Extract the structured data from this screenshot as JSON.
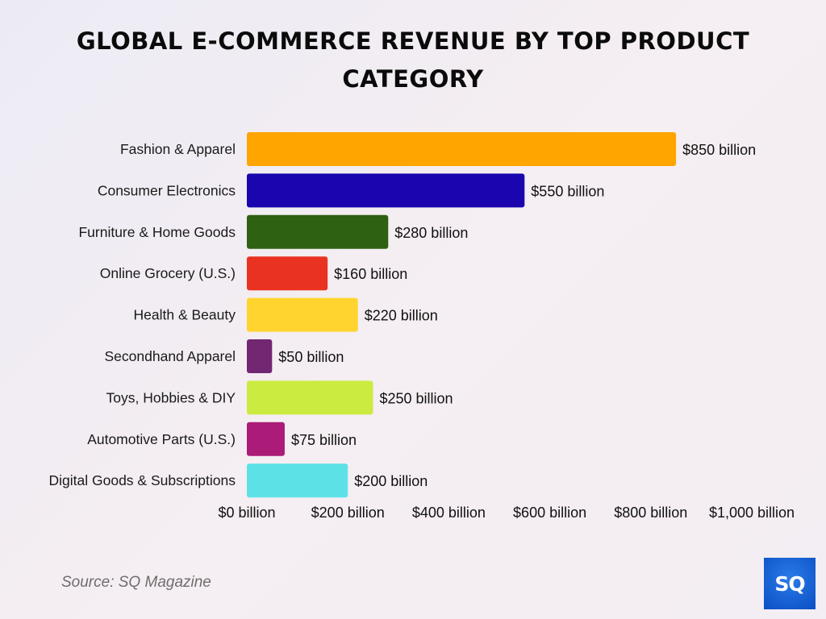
{
  "chart_data": {
    "type": "bar",
    "orientation": "horizontal",
    "title": "Global E-Commerce Revenue by Top Product Category",
    "categories": [
      "Fashion & Apparel",
      "Consumer Electronics",
      "Furniture & Home Goods",
      "Online Grocery (U.S.)",
      "Health & Beauty",
      "Secondhand Apparel",
      "Toys, Hobbies & DIY",
      "Automotive Parts (U.S.)",
      "Digital Goods & Subscriptions"
    ],
    "values": [
      850,
      550,
      280,
      160,
      220,
      50,
      250,
      75,
      200
    ],
    "data_labels": [
      "$850 billion",
      "$550 billion",
      "$280 billion",
      "$160 billion",
      "$220 billion",
      "$50 billion",
      "$250 billion",
      "$75 billion",
      "$200 billion"
    ],
    "colors": [
      "#FFA500",
      "#1A05AE",
      "#2E6112",
      "#E93222",
      "#FFD42E",
      "#722772",
      "#CCEB41",
      "#AA1C77",
      "#5CE2E6"
    ],
    "xlim": [
      0,
      1000
    ],
    "xticks": [
      0,
      200,
      400,
      600,
      800,
      1000
    ],
    "xtick_labels": [
      "$0 billion",
      "$200 billion",
      "$400 billion",
      "$600 billion",
      "$800 billion",
      "$1,000 billion"
    ],
    "xlabel": "",
    "ylabel": "",
    "grid": false,
    "legend": "none"
  },
  "source": "Source: SQ Magazine",
  "logo_text": "SQ"
}
